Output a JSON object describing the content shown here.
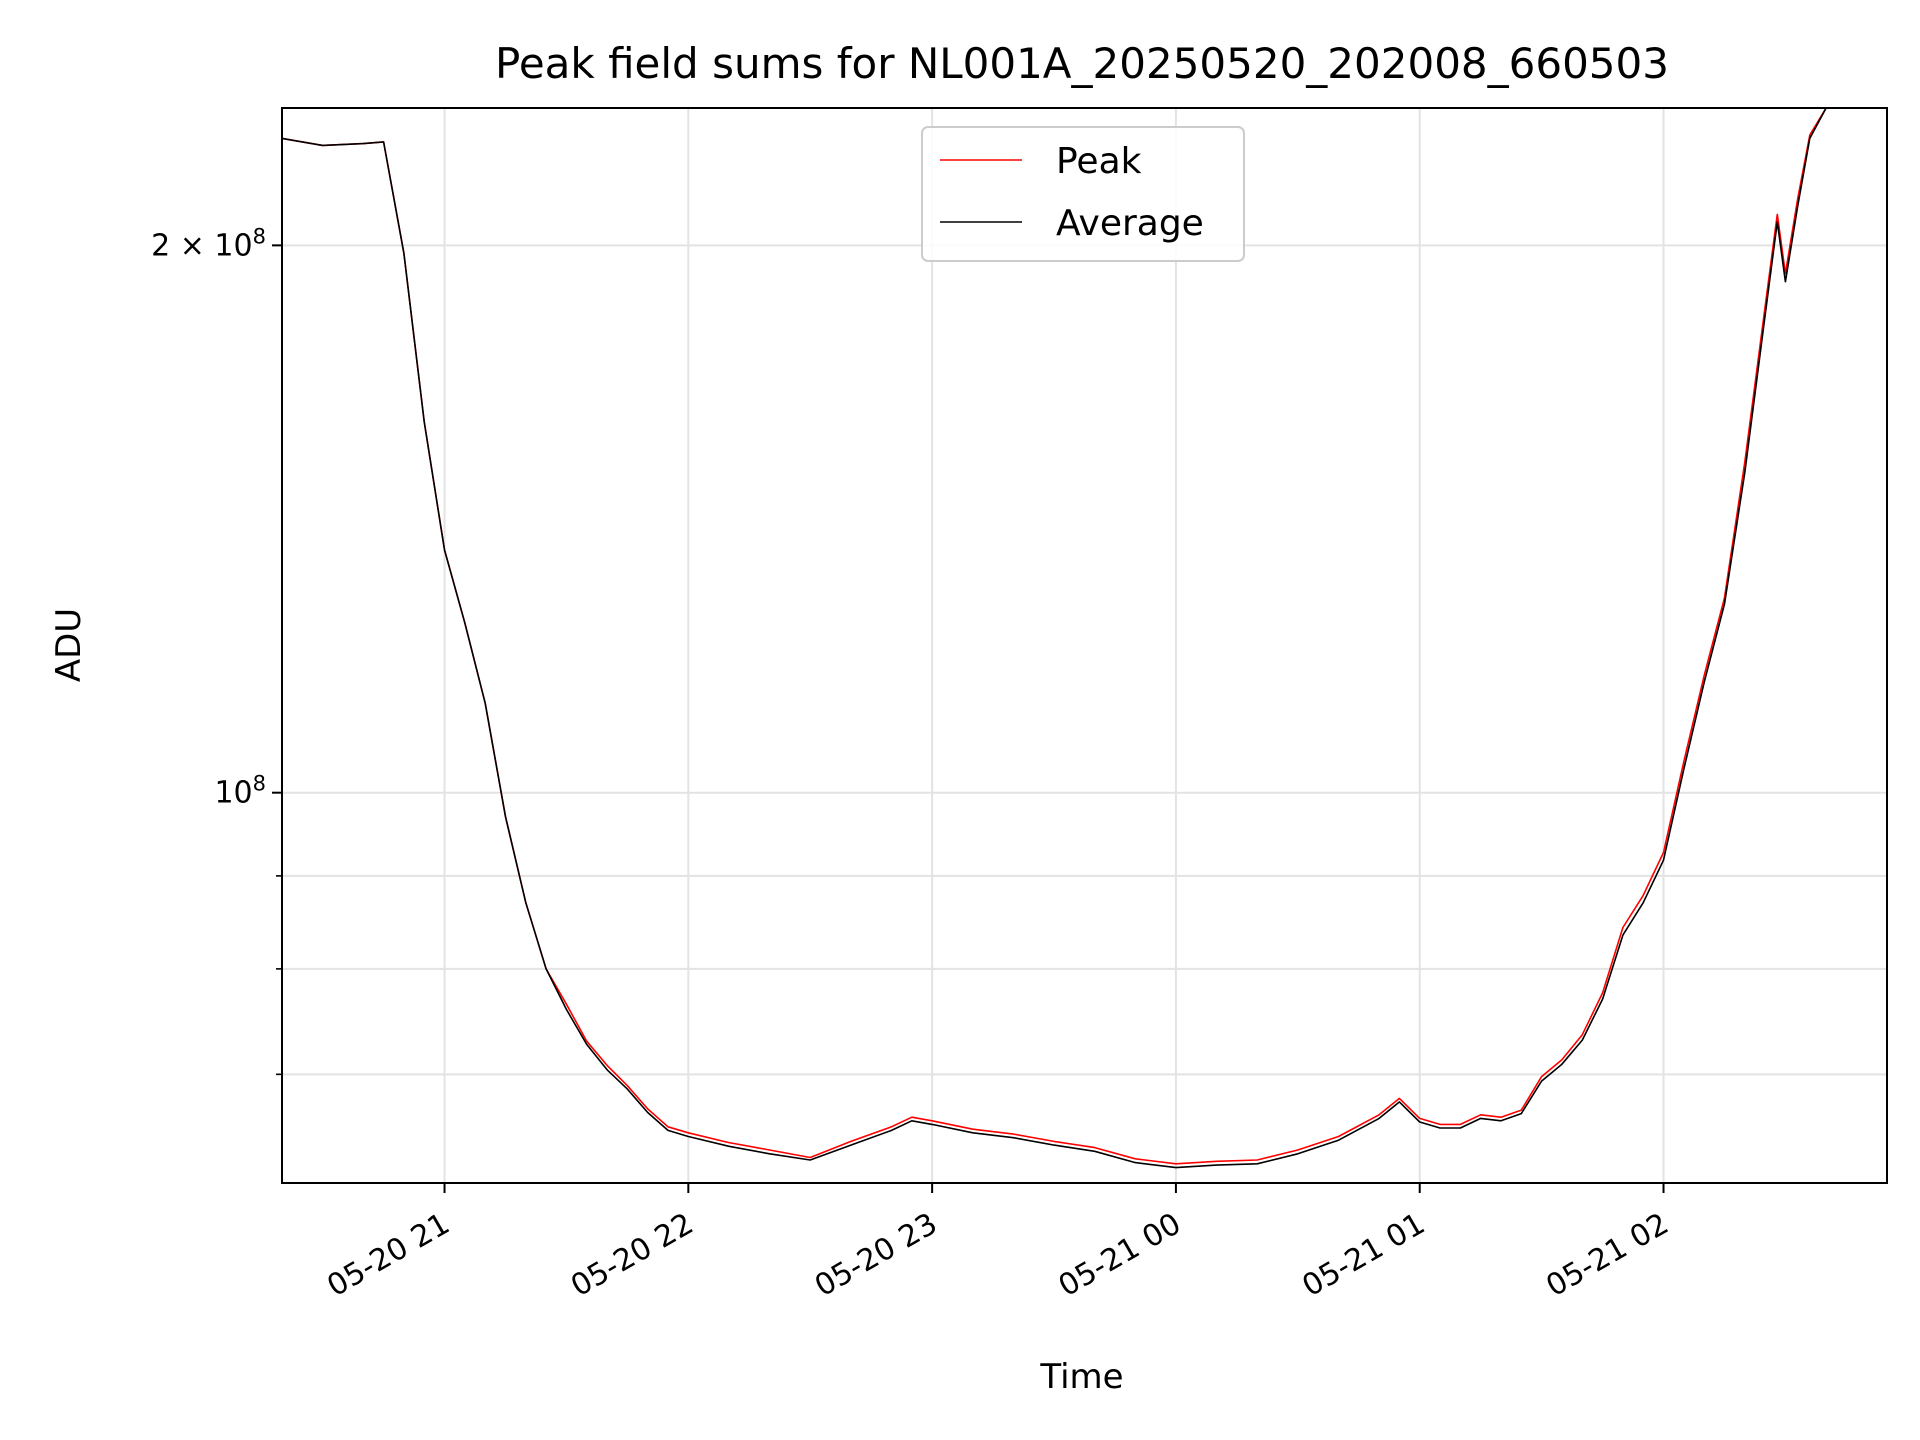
{
  "chart_data": {
    "type": "line",
    "title": "Peak field sums for NL001A_20250520_202008_660503",
    "xlabel": "Time",
    "ylabel": "ADU",
    "y_scale": "log",
    "ylim": [
      61000000,
      238000000
    ],
    "xlim": [
      "2025-05-20 20:20",
      "2025-05-21 02:55"
    ],
    "grid": true,
    "legend_position": "upper-center",
    "x_ticks": [
      {
        "t": "2025-05-20 21:00",
        "label": "05-20 21"
      },
      {
        "t": "2025-05-20 22:00",
        "label": "05-20 22"
      },
      {
        "t": "2025-05-20 23:00",
        "label": "05-20 23"
      },
      {
        "t": "2025-05-21 00:00",
        "label": "05-21 00"
      },
      {
        "t": "2025-05-21 01:00",
        "label": "05-21 01"
      },
      {
        "t": "2025-05-21 02:00",
        "label": "05-21 02"
      }
    ],
    "y_major_ticks": [
      {
        "value": 100000000,
        "base": "10",
        "exp": "8",
        "coef": ""
      },
      {
        "value": 200000000,
        "base": "10",
        "exp": "8",
        "coef": "2 × "
      }
    ],
    "y_minor_ticks": [
      60000000,
      70000000,
      80000000,
      90000000
    ],
    "series": [
      {
        "name": "Peak",
        "color": "#ff0000",
        "points": [
          [
            "2025-05-20 20:20",
            229000000
          ],
          [
            "2025-05-20 20:30",
            227000000
          ],
          [
            "2025-05-20 20:40",
            227500000
          ],
          [
            "2025-05-20 20:45",
            228000000
          ],
          [
            "2025-05-20 20:50",
            198000000
          ],
          [
            "2025-05-20 20:55",
            160000000
          ],
          [
            "2025-05-20 21:00",
            136000000
          ],
          [
            "2025-05-20 21:05",
            124000000
          ],
          [
            "2025-05-20 21:10",
            112000000
          ],
          [
            "2025-05-20 21:15",
            97000000
          ],
          [
            "2025-05-20 21:20",
            87000000
          ],
          [
            "2025-05-20 21:25",
            80000000
          ],
          [
            "2025-05-20 21:30",
            76500000
          ],
          [
            "2025-05-20 21:35",
            73000000
          ],
          [
            "2025-05-20 21:40",
            70800000
          ],
          [
            "2025-05-20 21:45",
            69000000
          ],
          [
            "2025-05-20 21:50",
            67000000
          ],
          [
            "2025-05-20 21:55",
            65500000
          ],
          [
            "2025-05-20 22:00",
            65000000
          ],
          [
            "2025-05-20 22:10",
            64200000
          ],
          [
            "2025-05-20 22:20",
            63600000
          ],
          [
            "2025-05-20 22:30",
            63000000
          ],
          [
            "2025-05-20 22:40",
            64300000
          ],
          [
            "2025-05-20 22:50",
            65500000
          ],
          [
            "2025-05-20 22:55",
            66300000
          ],
          [
            "2025-05-20 23:00",
            66000000
          ],
          [
            "2025-05-20 23:10",
            65300000
          ],
          [
            "2025-05-20 23:20",
            64900000
          ],
          [
            "2025-05-20 23:30",
            64300000
          ],
          [
            "2025-05-20 23:40",
            63800000
          ],
          [
            "2025-05-20 23:50",
            62900000
          ],
          [
            "2025-05-21 00:00",
            62500000
          ],
          [
            "2025-05-21 00:10",
            62700000
          ],
          [
            "2025-05-21 00:20",
            62800000
          ],
          [
            "2025-05-21 00:30",
            63600000
          ],
          [
            "2025-05-21 00:40",
            64700000
          ],
          [
            "2025-05-21 00:50",
            66500000
          ],
          [
            "2025-05-21 00:55",
            67900000
          ],
          [
            "2025-05-21 01:00",
            66200000
          ],
          [
            "2025-05-21 01:05",
            65700000
          ],
          [
            "2025-05-21 01:10",
            65700000
          ],
          [
            "2025-05-21 01:15",
            66500000
          ],
          [
            "2025-05-21 01:20",
            66300000
          ],
          [
            "2025-05-21 01:25",
            66900000
          ],
          [
            "2025-05-21 01:30",
            69800000
          ],
          [
            "2025-05-21 01:35",
            71300000
          ],
          [
            "2025-05-21 01:40",
            73600000
          ],
          [
            "2025-05-21 01:45",
            77600000
          ],
          [
            "2025-05-21 01:50",
            84300000
          ],
          [
            "2025-05-21 01:55",
            87800000
          ],
          [
            "2025-05-21 02:00",
            92700000
          ],
          [
            "2025-05-21 02:05",
            104000000
          ],
          [
            "2025-05-21 02:10",
            116000000
          ],
          [
            "2025-05-21 02:15",
            128000000
          ],
          [
            "2025-05-21 02:20",
            152000000
          ],
          [
            "2025-05-21 02:25",
            185000000
          ],
          [
            "2025-05-21 02:28",
            208000000
          ],
          [
            "2025-05-21 02:30",
            193000000
          ],
          [
            "2025-05-21 02:33",
            212000000
          ],
          [
            "2025-05-21 02:36",
            230000000
          ],
          [
            "2025-05-21 02:40",
            238000000
          ]
        ]
      },
      {
        "name": "Average",
        "color": "#000000",
        "points": [
          [
            "2025-05-20 20:20",
            229000000
          ],
          [
            "2025-05-20 20:30",
            227000000
          ],
          [
            "2025-05-20 20:40",
            227500000
          ],
          [
            "2025-05-20 20:45",
            228000000
          ],
          [
            "2025-05-20 20:50",
            198000000
          ],
          [
            "2025-05-20 20:55",
            160000000
          ],
          [
            "2025-05-20 21:00",
            136000000
          ],
          [
            "2025-05-20 21:05",
            124000000
          ],
          [
            "2025-05-20 21:10",
            112000000
          ],
          [
            "2025-05-20 21:15",
            97000000
          ],
          [
            "2025-05-20 21:20",
            87000000
          ],
          [
            "2025-05-20 21:25",
            80000000
          ],
          [
            "2025-05-20 21:30",
            76000000
          ],
          [
            "2025-05-20 21:35",
            72700000
          ],
          [
            "2025-05-20 21:40",
            70400000
          ],
          [
            "2025-05-20 21:45",
            68700000
          ],
          [
            "2025-05-20 21:50",
            66700000
          ],
          [
            "2025-05-20 21:55",
            65200000
          ],
          [
            "2025-05-20 22:00",
            64700000
          ],
          [
            "2025-05-20 22:10",
            63900000
          ],
          [
            "2025-05-20 22:20",
            63300000
          ],
          [
            "2025-05-20 22:30",
            62800000
          ],
          [
            "2025-05-20 22:40",
            64000000
          ],
          [
            "2025-05-20 22:50",
            65200000
          ],
          [
            "2025-05-20 22:55",
            66000000
          ],
          [
            "2025-05-20 23:00",
            65700000
          ],
          [
            "2025-05-20 23:10",
            65000000
          ],
          [
            "2025-05-20 23:20",
            64600000
          ],
          [
            "2025-05-20 23:30",
            64000000
          ],
          [
            "2025-05-20 23:40",
            63500000
          ],
          [
            "2025-05-20 23:50",
            62600000
          ],
          [
            "2025-05-21 00:00",
            62200000
          ],
          [
            "2025-05-21 00:10",
            62400000
          ],
          [
            "2025-05-21 00:20",
            62500000
          ],
          [
            "2025-05-21 00:30",
            63300000
          ],
          [
            "2025-05-21 00:40",
            64400000
          ],
          [
            "2025-05-21 00:50",
            66200000
          ],
          [
            "2025-05-21 00:55",
            67600000
          ],
          [
            "2025-05-21 01:00",
            65900000
          ],
          [
            "2025-05-21 01:05",
            65400000
          ],
          [
            "2025-05-21 01:10",
            65400000
          ],
          [
            "2025-05-21 01:15",
            66200000
          ],
          [
            "2025-05-21 01:20",
            66000000
          ],
          [
            "2025-05-21 01:25",
            66600000
          ],
          [
            "2025-05-21 01:30",
            69400000
          ],
          [
            "2025-05-21 01:35",
            70900000
          ],
          [
            "2025-05-21 01:40",
            73100000
          ],
          [
            "2025-05-21 01:45",
            77000000
          ],
          [
            "2025-05-21 01:50",
            83500000
          ],
          [
            "2025-05-21 01:55",
            87000000
          ],
          [
            "2025-05-21 02:00",
            91800000
          ],
          [
            "2025-05-21 02:05",
            103000000
          ],
          [
            "2025-05-21 02:10",
            115000000
          ],
          [
            "2025-05-21 02:15",
            127000000
          ],
          [
            "2025-05-21 02:20",
            150000000
          ],
          [
            "2025-05-21 02:25",
            183000000
          ],
          [
            "2025-05-21 02:28",
            206000000
          ],
          [
            "2025-05-21 02:30",
            191000000
          ],
          [
            "2025-05-21 02:33",
            210000000
          ],
          [
            "2025-05-21 02:36",
            229000000
          ],
          [
            "2025-05-21 02:40",
            238000000
          ]
        ]
      }
    ]
  }
}
